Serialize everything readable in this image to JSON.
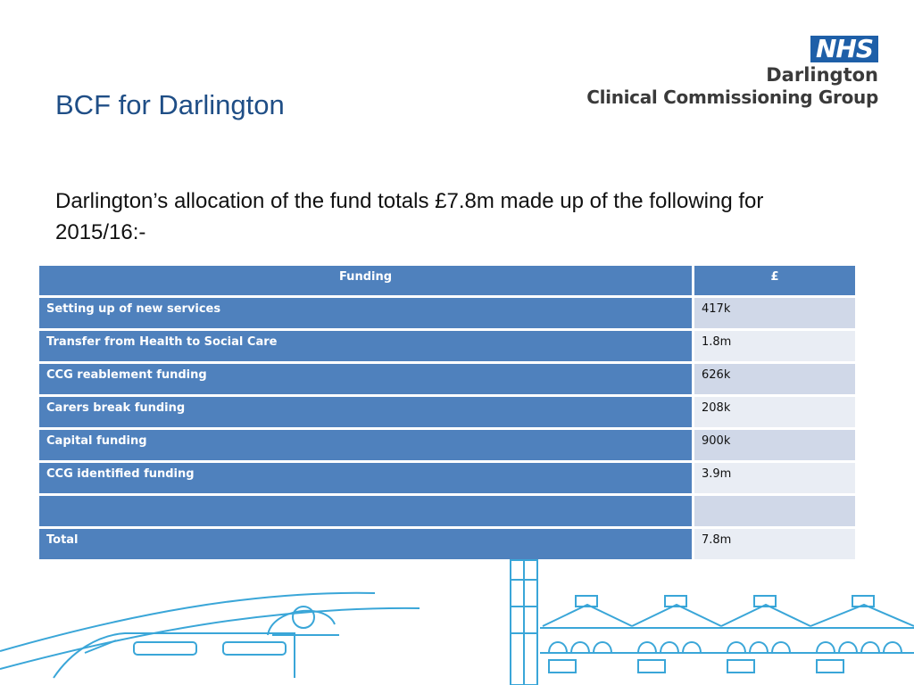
{
  "slide": {
    "title": "BCF for Darlington",
    "intro": "Darlington’s allocation of the fund totals £7.8m made up of the following for 2015/16:-"
  },
  "logo": {
    "badge": "NHS",
    "line1": "Darlington",
    "line2": "Clinical Commissioning Group"
  },
  "table": {
    "headers": [
      "Funding",
      "£"
    ],
    "rows": [
      {
        "label": "Setting up of new services",
        "value": "417k"
      },
      {
        "label": "Transfer from Health to Social Care",
        "value": "1.8m"
      },
      {
        "label": "CCG reablement funding",
        "value": "626k"
      },
      {
        "label": "Carers break funding",
        "value": "208k"
      },
      {
        "label": "Capital funding",
        "value": "900k"
      },
      {
        "label": "CCG identified funding",
        "value": "3.9m"
      },
      {
        "label": "",
        "value": ""
      },
      {
        "label": "Total",
        "value": "7.8m"
      }
    ]
  },
  "colors": {
    "title": "#1f4e86",
    "header_blue": "#4f81bd",
    "row_light_a": "#d0d8e8",
    "row_light_b": "#e9edf4",
    "nhs_blue": "#1e5fa8",
    "line_art": "#3aa6d8"
  }
}
